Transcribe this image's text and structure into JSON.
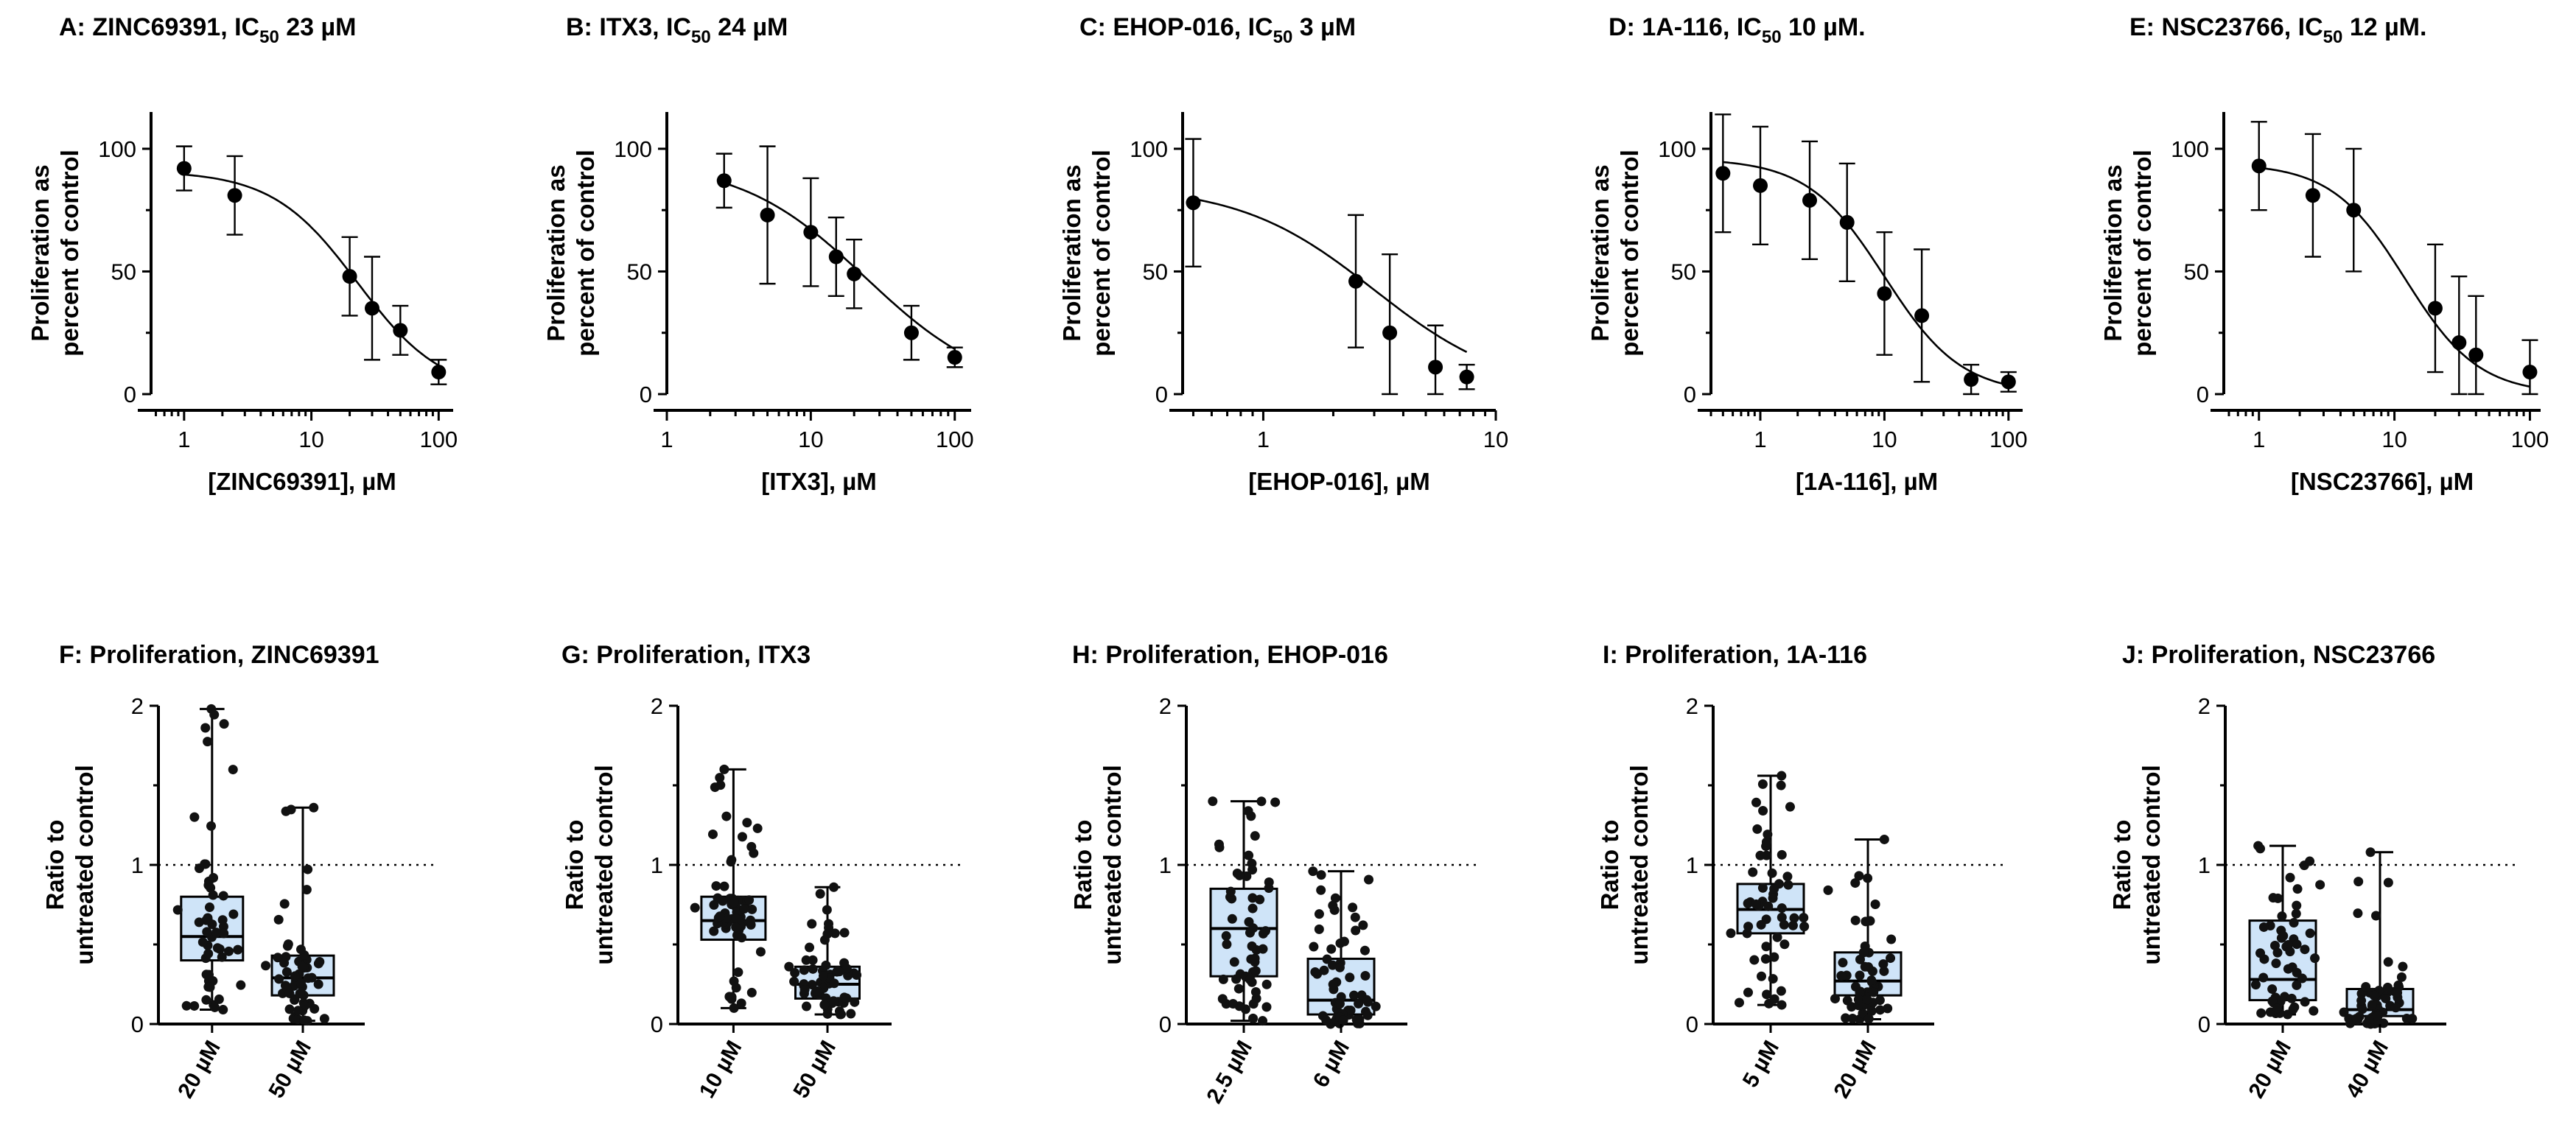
{
  "chart_data": [
    {
      "id": "A",
      "type": "scatter",
      "xscale": "log",
      "title_pre": "A: ZINC69391, IC",
      "title_sub": "50",
      "title_post": " 23 µM",
      "xlabel": "[ZINC69391], µM",
      "ylabel_lines": [
        "Proliferation as",
        "percent of control"
      ],
      "xticks": [
        {
          "v": 1,
          "label": "1"
        },
        {
          "v": 10,
          "label": "10"
        },
        {
          "v": 100,
          "label": "100"
        }
      ],
      "yticks": [
        {
          "v": 0,
          "label": "0"
        },
        {
          "v": 50,
          "label": "50"
        },
        {
          "v": 100,
          "label": "100"
        }
      ],
      "xlim": [
        0.55,
        130
      ],
      "ylim": [
        0,
        115
      ],
      "ic50": 23,
      "top": 91,
      "bottom": 0,
      "hill": 1.3,
      "points": [
        {
          "x": 1,
          "y": 92,
          "err": 9
        },
        {
          "x": 2.5,
          "y": 81,
          "err": 16
        },
        {
          "x": 20,
          "y": 48,
          "err": 16
        },
        {
          "x": 30,
          "y": 35,
          "err": 21
        },
        {
          "x": 50,
          "y": 26,
          "err": 10
        },
        {
          "x": 100,
          "y": 9,
          "err": 5
        }
      ]
    },
    {
      "id": "B",
      "type": "scatter",
      "xscale": "log",
      "title_pre": "B: ITX3, IC",
      "title_sub": "50",
      "title_post": " 24 µM",
      "xlabel": "[ITX3], µM",
      "ylabel_lines": [
        "Proliferation as",
        "percent of control"
      ],
      "xticks": [
        {
          "v": 1,
          "label": "1"
        },
        {
          "v": 10,
          "label": "10"
        },
        {
          "v": 100,
          "label": "100"
        }
      ],
      "yticks": [
        {
          "v": 0,
          "label": "0"
        },
        {
          "v": 50,
          "label": "50"
        },
        {
          "v": 100,
          "label": "100"
        }
      ],
      "xlim": [
        1,
        130
      ],
      "ylim": [
        0,
        115
      ],
      "ic50": 24,
      "top": 95,
      "bottom": 0,
      "hill": 1.0,
      "points": [
        {
          "x": 2.5,
          "y": 87,
          "err": 11
        },
        {
          "x": 5,
          "y": 73,
          "err": 28
        },
        {
          "x": 10,
          "y": 66,
          "err": 22
        },
        {
          "x": 15,
          "y": 56,
          "err": 16
        },
        {
          "x": 20,
          "y": 49,
          "err": 14
        },
        {
          "x": 50,
          "y": 25,
          "err": 11
        },
        {
          "x": 100,
          "y": 15,
          "err": 4
        }
      ]
    },
    {
      "id": "C",
      "type": "scatter",
      "xscale": "log",
      "title_pre": "C: EHOP-016, IC",
      "title_sub": "50",
      "title_post": " 3 µM",
      "xlabel": "[EHOP-016], µM",
      "ylabel_lines": [
        "Proliferation as",
        "percent of control"
      ],
      "xticks": [
        {
          "v": 1,
          "label": "1"
        },
        {
          "v": 10,
          "label": "10"
        }
      ],
      "yticks": [
        {
          "v": 0,
          "label": "0"
        },
        {
          "v": 50,
          "label": "50"
        },
        {
          "v": 100,
          "label": "100"
        }
      ],
      "xlim": [
        0.45,
        10
      ],
      "ylim": [
        0,
        115
      ],
      "ic50": 3,
      "top": 85,
      "bottom": 0,
      "hill": 1.5,
      "points": [
        {
          "x": 0.5,
          "y": 78,
          "err": 26
        },
        {
          "x": 2.5,
          "y": 46,
          "err": 27
        },
        {
          "x": 3.5,
          "y": 25,
          "err": 32
        },
        {
          "x": 5.5,
          "y": 11,
          "err": 17
        },
        {
          "x": 7.5,
          "y": 7,
          "err": 5
        }
      ]
    },
    {
      "id": "D",
      "type": "scatter",
      "xscale": "log",
      "title_pre": "D: 1A-116, IC",
      "title_sub": "50",
      "title_post": " 10 µM.",
      "xlabel": "[1A-116], µM",
      "ylabel_lines": [
        "Proliferation as",
        "percent of control"
      ],
      "xticks": [
        {
          "v": 1,
          "label": "1"
        },
        {
          "v": 10,
          "label": "10"
        },
        {
          "v": 100,
          "label": "100"
        }
      ],
      "yticks": [
        {
          "v": 0,
          "label": "0"
        },
        {
          "v": 50,
          "label": "50"
        },
        {
          "v": 100,
          "label": "100"
        }
      ],
      "xlim": [
        0.4,
        130
      ],
      "ylim": [
        0,
        115
      ],
      "ic50": 10,
      "top": 96,
      "bottom": 0,
      "hill": 1.4,
      "points": [
        {
          "x": 0.5,
          "y": 90,
          "err": 24
        },
        {
          "x": 1,
          "y": 85,
          "err": 24
        },
        {
          "x": 2.5,
          "y": 79,
          "err": 24
        },
        {
          "x": 5,
          "y": 70,
          "err": 24
        },
        {
          "x": 10,
          "y": 41,
          "err": 25
        },
        {
          "x": 20,
          "y": 32,
          "err": 27
        },
        {
          "x": 50,
          "y": 6,
          "err": 6
        },
        {
          "x": 100,
          "y": 5,
          "err": 4
        }
      ]
    },
    {
      "id": "E",
      "type": "scatter",
      "xscale": "log",
      "title_pre": "E: NSC23766, IC",
      "title_sub": "50",
      "title_post": " 12 µM.",
      "xlabel": "[NSC23766], µM",
      "ylabel_lines": [
        "Proliferation as",
        "percent of control"
      ],
      "xticks": [
        {
          "v": 1,
          "label": "1"
        },
        {
          "v": 10,
          "label": "10"
        },
        {
          "v": 100,
          "label": "100"
        }
      ],
      "yticks": [
        {
          "v": 0,
          "label": "0"
        },
        {
          "v": 50,
          "label": "50"
        },
        {
          "v": 100,
          "label": "100"
        }
      ],
      "xlim": [
        0.55,
        120
      ],
      "ylim": [
        0,
        115
      ],
      "ic50": 12,
      "top": 94,
      "bottom": 0,
      "hill": 1.6,
      "points": [
        {
          "x": 1,
          "y": 93,
          "err": 18
        },
        {
          "x": 2.5,
          "y": 81,
          "err": 25
        },
        {
          "x": 5,
          "y": 75,
          "err": 25
        },
        {
          "x": 20,
          "y": 35,
          "err": 26
        },
        {
          "x": 30,
          "y": 21,
          "err": 27
        },
        {
          "x": 40,
          "y": 16,
          "err": 24
        },
        {
          "x": 100,
          "y": 9,
          "err": 13
        }
      ]
    },
    {
      "id": "F",
      "type": "box",
      "title": "F: Proliferation, ZINC69391",
      "ylabel_lines": [
        "Ratio to",
        "untreated control"
      ],
      "yticks": [
        {
          "v": 0,
          "label": "0"
        },
        {
          "v": 1,
          "label": "1"
        },
        {
          "v": 2,
          "label": "2"
        }
      ],
      "ylim": [
        0,
        2
      ],
      "ref": 1,
      "categories": [
        "20 µM",
        "50 µM"
      ],
      "boxes": [
        {
          "min": 0.09,
          "q1": 0.4,
          "median": 0.55,
          "q3": 0.8,
          "max": 1.98,
          "n": 55
        },
        {
          "min": 0.02,
          "q1": 0.18,
          "median": 0.29,
          "q3": 0.43,
          "max": 1.36,
          "n": 55
        }
      ]
    },
    {
      "id": "G",
      "type": "box",
      "title": "G: Proliferation, ITX3",
      "ylabel_lines": [
        "Ratio to",
        "untreated control"
      ],
      "yticks": [
        {
          "v": 0,
          "label": "0"
        },
        {
          "v": 1,
          "label": "1"
        },
        {
          "v": 2,
          "label": "2"
        }
      ],
      "ylim": [
        0,
        2
      ],
      "ref": 1,
      "categories": [
        "10 µM",
        "50 µM"
      ],
      "boxes": [
        {
          "min": 0.1,
          "q1": 0.53,
          "median": 0.65,
          "q3": 0.8,
          "max": 1.6,
          "n": 65
        },
        {
          "min": 0.06,
          "q1": 0.16,
          "median": 0.25,
          "q3": 0.36,
          "max": 0.86,
          "n": 65
        }
      ]
    },
    {
      "id": "H",
      "type": "box",
      "title": "H: Proliferation, EHOP-016",
      "ylabel_lines": [
        "Ratio to",
        "untreated control"
      ],
      "yticks": [
        {
          "v": 0,
          "label": "0"
        },
        {
          "v": 1,
          "label": "1"
        },
        {
          "v": 2,
          "label": "2"
        }
      ],
      "ylim": [
        0,
        2
      ],
      "ref": 1,
      "categories": [
        "2.5 µM",
        "6 µM"
      ],
      "boxes": [
        {
          "min": 0.02,
          "q1": 0.3,
          "median": 0.6,
          "q3": 0.85,
          "max": 1.4,
          "n": 60
        },
        {
          "min": 0.0,
          "q1": 0.06,
          "median": 0.15,
          "q3": 0.41,
          "max": 0.96,
          "n": 60
        }
      ]
    },
    {
      "id": "I",
      "type": "box",
      "title": "I: Proliferation, 1A-116",
      "ylabel_lines": [
        "Ratio to",
        "untreated control"
      ],
      "yticks": [
        {
          "v": 0,
          "label": "0"
        },
        {
          "v": 1,
          "label": "1"
        },
        {
          "v": 2,
          "label": "2"
        }
      ],
      "ylim": [
        0,
        2
      ],
      "ref": 1,
      "categories": [
        "5 µM",
        "20 µM"
      ],
      "boxes": [
        {
          "min": 0.12,
          "q1": 0.57,
          "median": 0.72,
          "q3": 0.88,
          "max": 1.56,
          "n": 55
        },
        {
          "min": 0.03,
          "q1": 0.18,
          "median": 0.27,
          "q3": 0.45,
          "max": 1.16,
          "n": 55
        }
      ]
    },
    {
      "id": "J",
      "type": "box",
      "title": "J: Proliferation, NSC23766",
      "ylabel_lines": [
        "Ratio to",
        "untreated control"
      ],
      "yticks": [
        {
          "v": 0,
          "label": "0"
        },
        {
          "v": 1,
          "label": "1"
        },
        {
          "v": 2,
          "label": "2"
        }
      ],
      "ylim": [
        0,
        2
      ],
      "ref": 1,
      "categories": [
        "20 µM",
        "40 µM"
      ],
      "boxes": [
        {
          "min": 0.06,
          "q1": 0.15,
          "median": 0.28,
          "q3": 0.65,
          "max": 1.12,
          "n": 55
        },
        {
          "min": 0.0,
          "q1": 0.05,
          "median": 0.09,
          "q3": 0.22,
          "max": 1.08,
          "n": 55
        }
      ]
    }
  ]
}
